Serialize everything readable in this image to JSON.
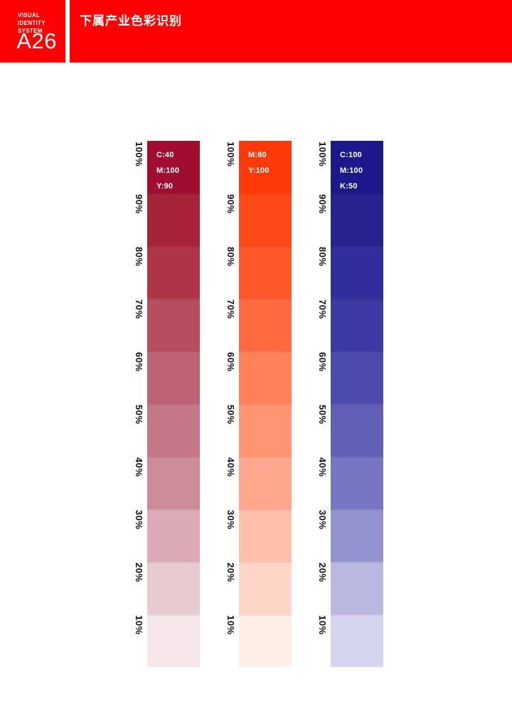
{
  "header": {
    "background_color": "#FF0000",
    "system_label_lines": [
      "VISUAL IDENTITY",
      "SYSTEM"
    ],
    "page_code": "A26",
    "title": "下属产业色彩识别"
  },
  "chart": {
    "tint_levels": [
      "100%",
      "90%",
      "80%",
      "70%",
      "60%",
      "50%",
      "40%",
      "30%",
      "20%",
      "10%"
    ],
    "bars": [
      {
        "name": "crimson",
        "cmyk_lines": [
          "C:40",
          "M:100",
          "Y:90"
        ],
        "base_color": "#A10D2F",
        "tints": [
          "#A10D2F",
          "#A62339",
          "#AE3447",
          "#B54D5F",
          "#BE6275",
          "#C57787",
          "#CC8B99",
          "#DBAAB4",
          "#E8CAD1",
          "#F5E7EA"
        ]
      },
      {
        "name": "orange-red",
        "cmyk_lines": [
          "M:80",
          "Y:100"
        ],
        "base_color": "#FF3908",
        "tints": [
          "#FF3908",
          "#FF4A17",
          "#FF572A",
          "#FF6940",
          "#FF8159",
          "#FF9572",
          "#FFA88E",
          "#FFBFAB",
          "#FDD6C8",
          "#FEEEE7"
        ]
      },
      {
        "name": "navy-blue",
        "cmyk_lines": [
          "C:100",
          "M:100",
          "K:50"
        ],
        "base_color": "#1B198C",
        "tints": [
          "#1B198C",
          "#252390",
          "#2F2E9C",
          "#3B3AA2",
          "#4A49AC",
          "#6160B6",
          "#7776C2",
          "#9493CF",
          "#B9B8E0",
          "#D6D5EF"
        ]
      }
    ]
  }
}
